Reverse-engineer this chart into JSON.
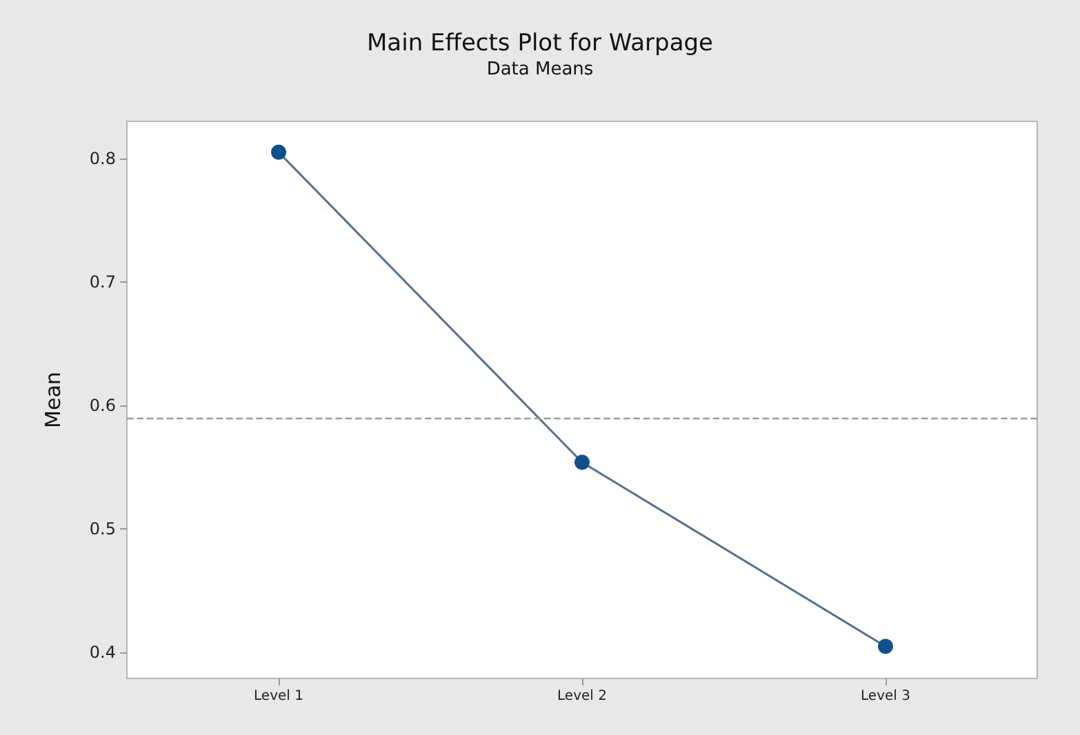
{
  "chart_data": {
    "type": "line",
    "title": "Main Effects Plot for Warpage",
    "subtitle": "Data Means",
    "ylabel": "Mean",
    "categories": [
      "Level 1",
      "Level 2",
      "Level 3"
    ],
    "series": [
      {
        "color": "#0f4f8c",
        "values": [
          0.805,
          0.554,
          0.405
        ]
      }
    ],
    "ylim": [
      0.379,
      0.83
    ],
    "yticks": [
      0.4,
      0.5,
      0.6,
      0.7,
      0.8
    ],
    "grid": false,
    "marker": "circle",
    "line_style": "solid",
    "ref_lines": [
      {
        "axis": "y",
        "value": 0.588,
        "color": "#9a9a9a",
        "line_style": "dashed"
      }
    ]
  }
}
